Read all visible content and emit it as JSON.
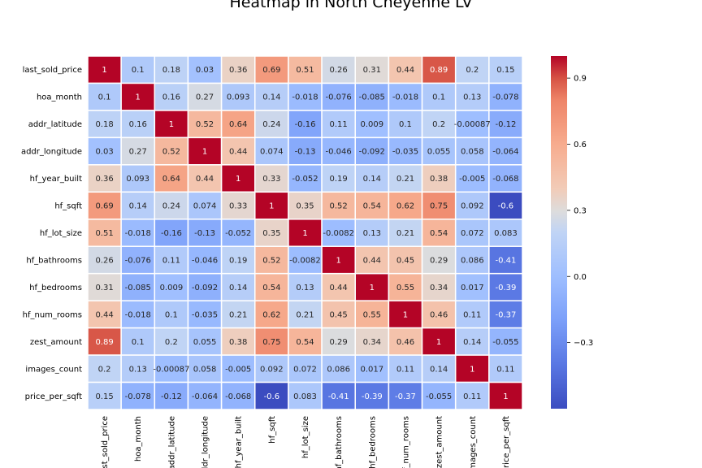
{
  "chart_data": {
    "type": "heatmap",
    "title": "Heatmap in North Cheyenne LV",
    "xlabel": "",
    "ylabel": "",
    "labels": [
      "last_sold_price",
      "hoa_month",
      "addr_latitude",
      "addr_longitude",
      "hf_year_built",
      "hf_sqft",
      "hf_lot_size",
      "hf_bathrooms",
      "hf_bedrooms",
      "hf_num_rooms",
      "zest_amount",
      "images_count",
      "price_per_sqft"
    ],
    "values": [
      [
        "1",
        "0.1",
        "0.18",
        "0.03",
        "0.36",
        "0.69",
        "0.51",
        "0.26",
        "0.31",
        "0.44",
        "0.89",
        "0.2",
        "0.15"
      ],
      [
        "0.1",
        "1",
        "0.16",
        "0.27",
        "0.093",
        "0.14",
        "-0.018",
        "-0.076",
        "-0.085",
        "-0.018",
        "0.1",
        "0.13",
        "-0.078"
      ],
      [
        "0.18",
        "0.16",
        "1",
        "0.52",
        "0.64",
        "0.24",
        "-0.16",
        "0.11",
        "0.009",
        "0.1",
        "0.2",
        "-0.00087",
        "-0.12"
      ],
      [
        "0.03",
        "0.27",
        "0.52",
        "1",
        "0.44",
        "0.074",
        "-0.13",
        "-0.046",
        "-0.092",
        "-0.035",
        "0.055",
        "0.058",
        "-0.064"
      ],
      [
        "0.36",
        "0.093",
        "0.64",
        "0.44",
        "1",
        "0.33",
        "-0.052",
        "0.19",
        "0.14",
        "0.21",
        "0.38",
        "-0.005",
        "-0.068"
      ],
      [
        "0.69",
        "0.14",
        "0.24",
        "0.074",
        "0.33",
        "1",
        "0.35",
        "0.52",
        "0.54",
        "0.62",
        "0.75",
        "0.092",
        "-0.6"
      ],
      [
        "0.51",
        "-0.018",
        "-0.16",
        "-0.13",
        "-0.052",
        "0.35",
        "1",
        "-0.0082",
        "0.13",
        "0.21",
        "0.54",
        "0.072",
        "0.083"
      ],
      [
        "0.26",
        "-0.076",
        "0.11",
        "-0.046",
        "0.19",
        "0.52",
        "-0.0082",
        "1",
        "0.44",
        "0.45",
        "0.29",
        "0.086",
        "-0.41"
      ],
      [
        "0.31",
        "-0.085",
        "0.009",
        "-0.092",
        "0.14",
        "0.54",
        "0.13",
        "0.44",
        "1",
        "0.55",
        "0.34",
        "0.017",
        "-0.39"
      ],
      [
        "0.44",
        "-0.018",
        "0.1",
        "-0.035",
        "0.21",
        "0.62",
        "0.21",
        "0.45",
        "0.55",
        "1",
        "0.46",
        "0.11",
        "-0.37"
      ],
      [
        "0.89",
        "0.1",
        "0.2",
        "0.055",
        "0.38",
        "0.75",
        "0.54",
        "0.29",
        "0.34",
        "0.46",
        "1",
        "0.14",
        "-0.055"
      ],
      [
        "0.2",
        "0.13",
        "-0.00087",
        "0.058",
        "-0.005",
        "0.092",
        "0.072",
        "0.086",
        "0.017",
        "0.11",
        "0.14",
        "1",
        "0.11"
      ],
      [
        "0.15",
        "-0.078",
        "-0.12",
        "-0.064",
        "-0.068",
        "-0.6",
        "0.083",
        "-0.41",
        "-0.39",
        "-0.37",
        "-0.055",
        "0.11",
        "1"
      ]
    ],
    "colormap": "coolwarm",
    "vmin": -0.6,
    "vmax": 1.0,
    "colorbar_ticks": [
      "0.9",
      "0.6",
      "0.3",
      "0.0",
      "−0.3"
    ],
    "colorbar_tick_values": [
      0.9,
      0.6,
      0.3,
      0.0,
      -0.3
    ],
    "grid_line_color": "#ffffff"
  }
}
